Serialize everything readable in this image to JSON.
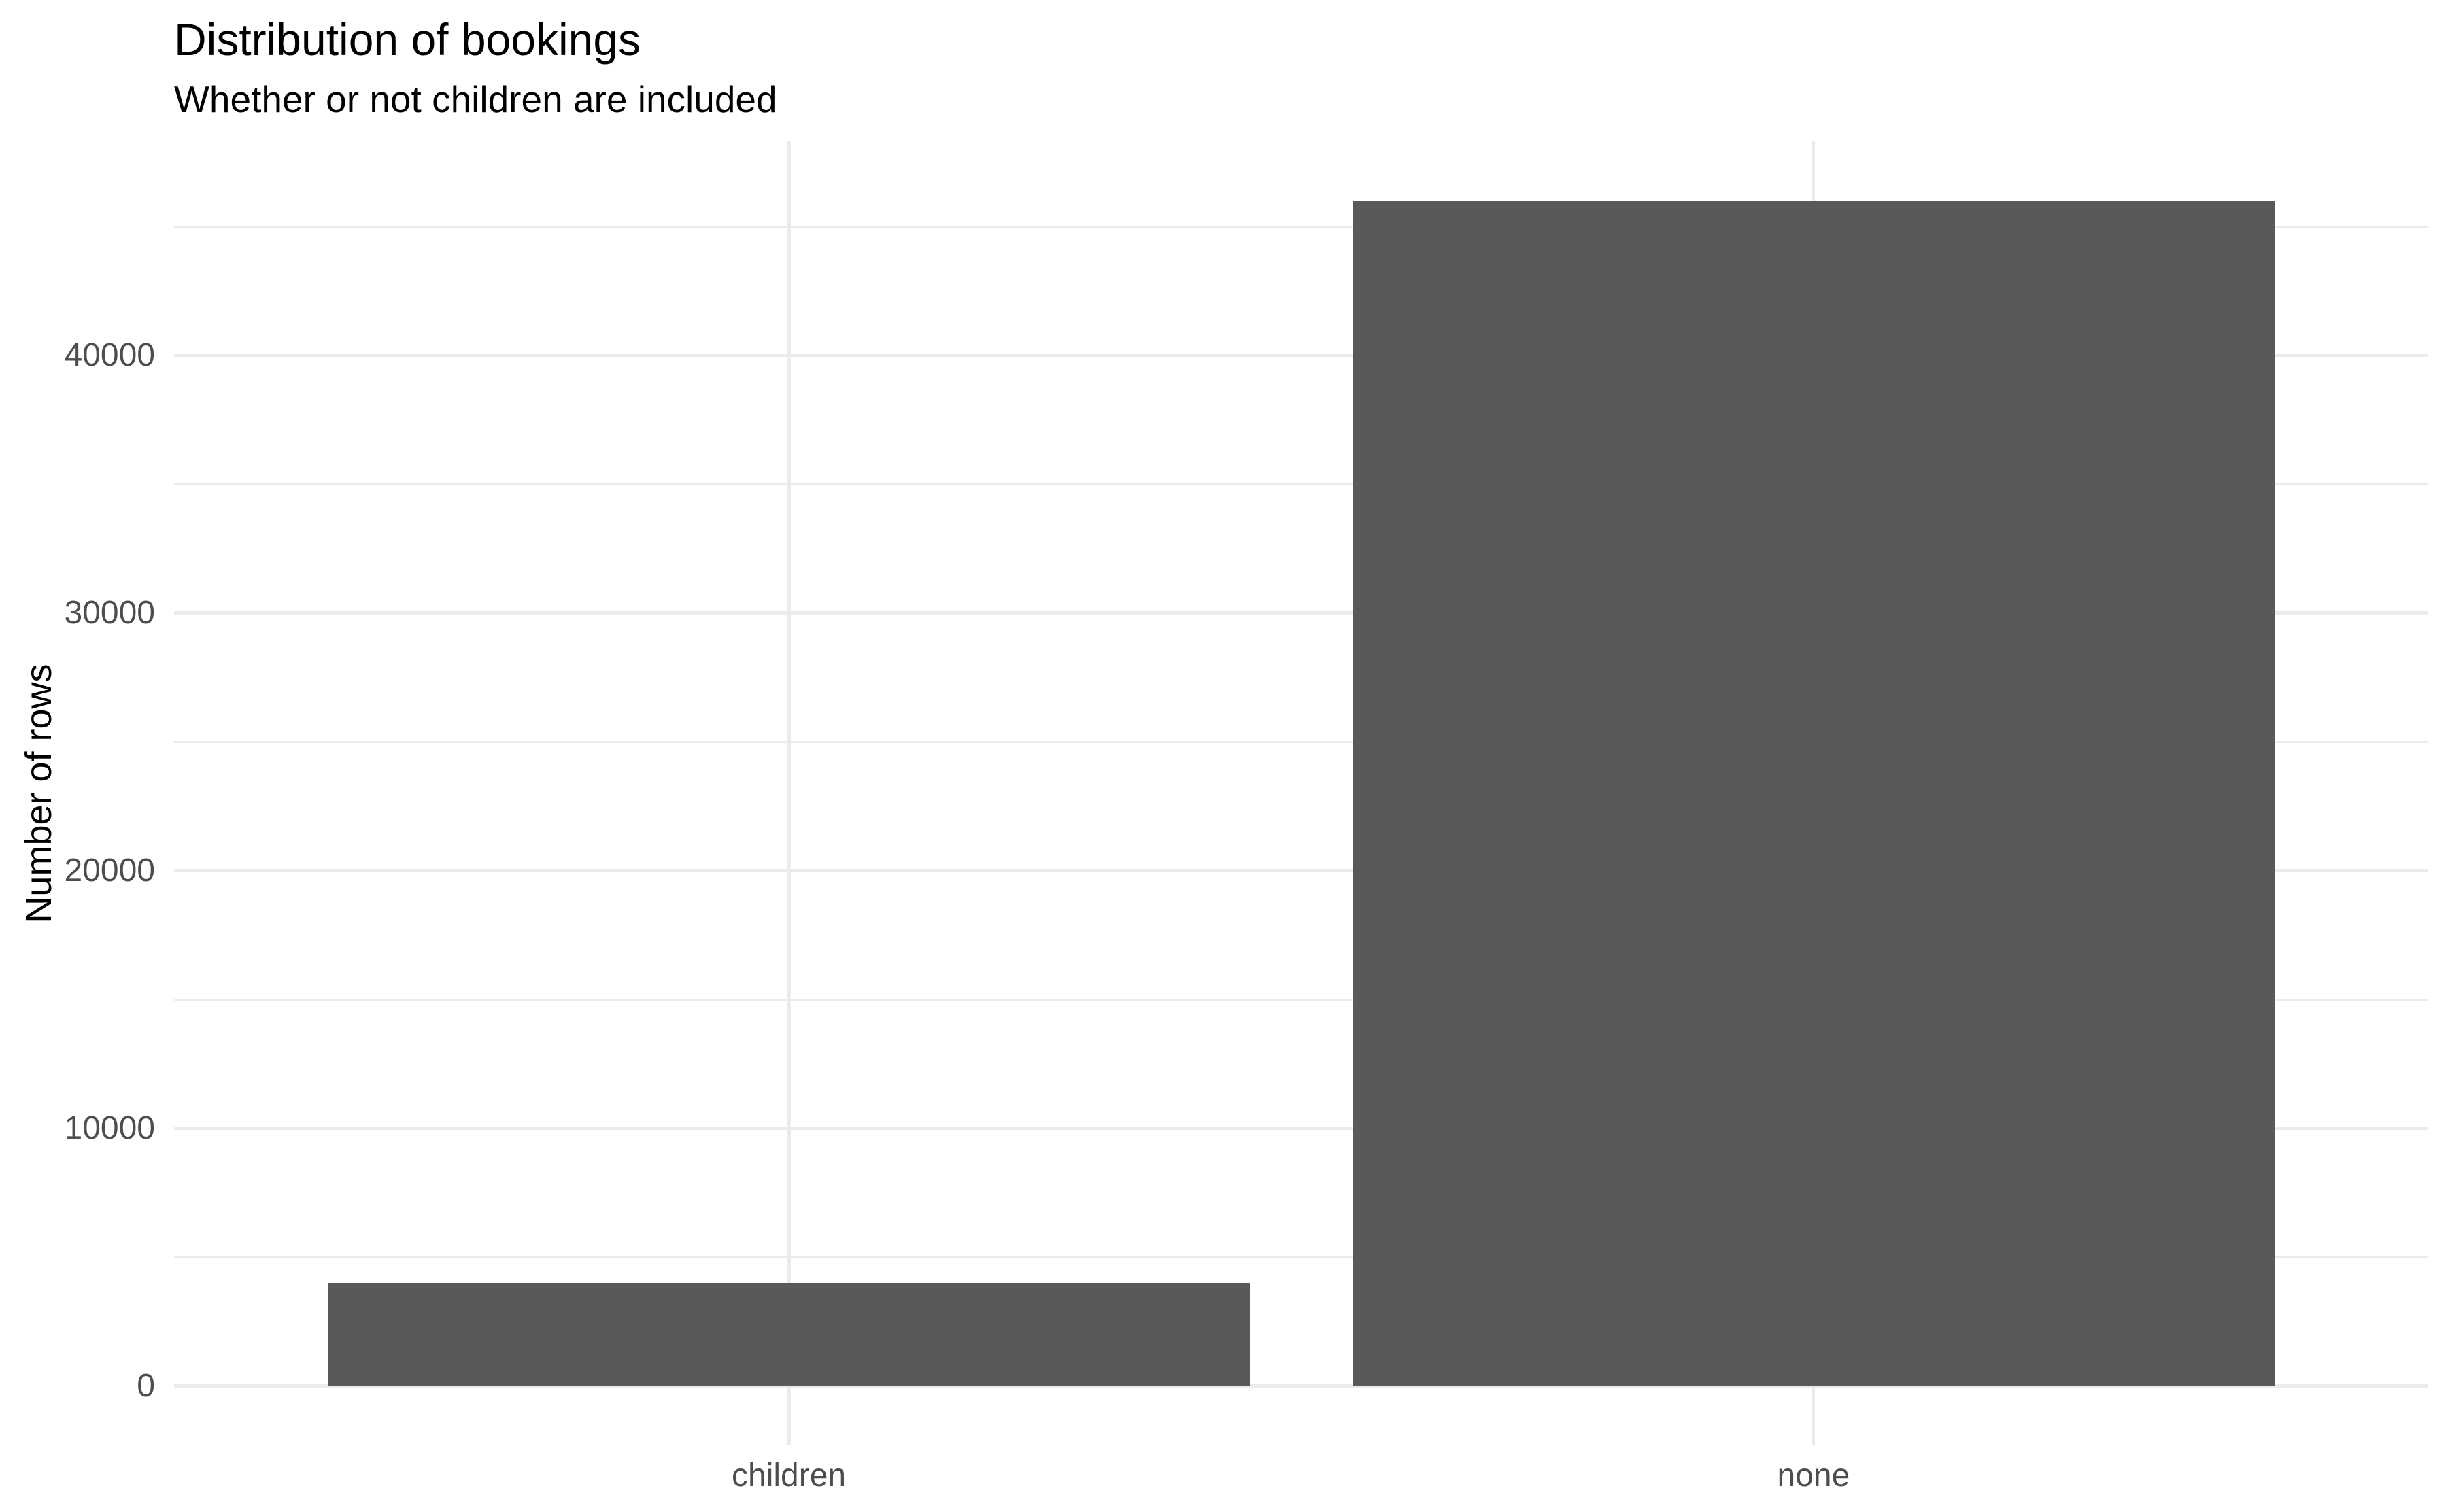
{
  "chart_data": {
    "type": "bar",
    "title": "Distribution of bookings",
    "subtitle": "Whether or not children are included",
    "xlabel": "",
    "ylabel": "Number of rows",
    "categories": [
      "children",
      "none"
    ],
    "values": [
      4000,
      46000
    ],
    "ylim": [
      0,
      46000
    ],
    "y_major_ticks": [
      0,
      10000,
      20000,
      30000,
      40000
    ],
    "y_minor_ticks": [
      5000,
      15000,
      25000,
      35000,
      45000
    ],
    "grid": "on",
    "legend": "none",
    "colors": {
      "bar_fill": "#595959",
      "grid_major": "#EBEBEB",
      "grid_minor": "#EBEBEB",
      "axis_text": "#4D4D4D",
      "title_text": "#000000",
      "background": "#FFFFFF"
    }
  }
}
